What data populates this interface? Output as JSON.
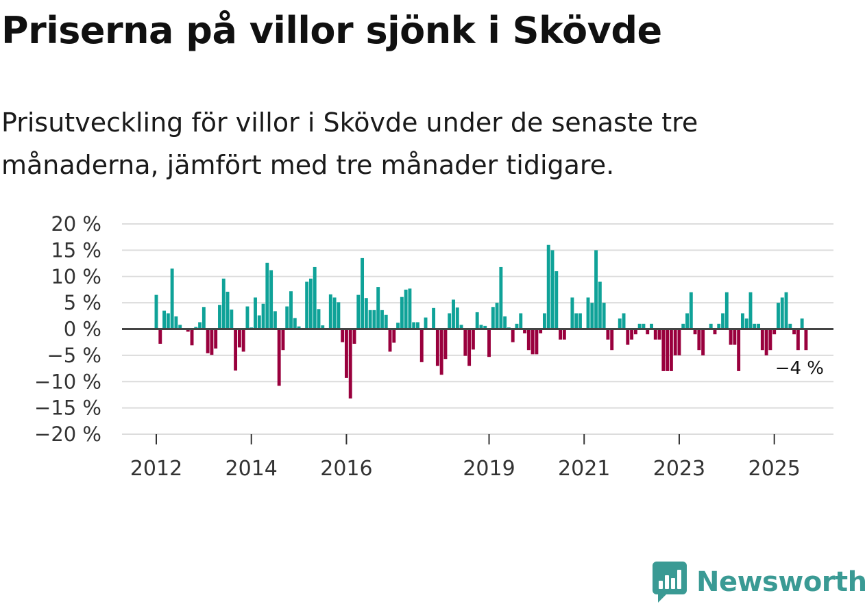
{
  "header": {
    "title": "Priserna på villor sjönk i Skövde",
    "subtitle": "Prisutveckling för villor i Skövde under de senaste tre månaderna, jämfört med tre månader tidigare."
  },
  "branding": {
    "logo_text": "Newsworthy",
    "logo_icon": "bar-chart-speech-icon"
  },
  "colors": {
    "positive": "#0fa298",
    "negative": "#99003d",
    "grid": "#dcdcdc",
    "zero_line": "#444444",
    "logo": "#3a9a94"
  },
  "chart_data": {
    "type": "bar",
    "title": "Priserna på villor sjönk i Skövde",
    "xlabel": "",
    "ylabel": "",
    "ylim": [
      -20,
      20
    ],
    "y_ticks": [
      20,
      15,
      10,
      5,
      0,
      -5,
      -10,
      -15,
      -20
    ],
    "y_tick_labels": [
      "20 %",
      "15 %",
      "10 %",
      "5 %",
      "0 %",
      "−5 %",
      "−10 %",
      "−15 %",
      "−20 %"
    ],
    "x_tick_labels": [
      {
        "label": "2012",
        "index": 0
      },
      {
        "label": "2014",
        "index": 24
      },
      {
        "label": "2016",
        "index": 48
      },
      {
        "label": "2019",
        "index": 84
      },
      {
        "label": "2021",
        "index": 108
      },
      {
        "label": "2023",
        "index": 132
      },
      {
        "label": "2025",
        "index": 156
      }
    ],
    "start": "2012-01",
    "grid": true,
    "annotation": {
      "label": "−4 %",
      "index": 164
    },
    "values": [
      6.5,
      -2.8,
      3.5,
      3,
      11.5,
      2.4,
      0.8,
      0,
      -0.5,
      -3.1,
      0.4,
      1.3,
      4.2,
      -4.6,
      -4.9,
      -3.7,
      4.6,
      9.6,
      7.1,
      3.7,
      -7.9,
      -3.5,
      -4.3,
      4.3,
      0.3,
      6,
      2.6,
      4.8,
      12.6,
      11.2,
      3.4,
      -10.8,
      -4,
      4.3,
      7.2,
      2.1,
      0.5,
      0.2,
      9,
      9.6,
      11.8,
      3.8,
      0.7,
      0,
      6.6,
      6,
      5.1,
      -2.5,
      -9.3,
      -13.2,
      -2.8,
      6.5,
      13.5,
      5.9,
      3.6,
      3.6,
      8,
      3.6,
      2.7,
      -4.3,
      -2.6,
      1.2,
      6.1,
      7.5,
      7.7,
      1.3,
      1.3,
      -6.3,
      2.2,
      0,
      4,
      -7,
      -8.7,
      -5.7,
      3,
      5.6,
      4.1,
      0.8,
      -5.1,
      -7,
      -3.9,
      3.2,
      0.8,
      0.6,
      -5.3,
      4.2,
      5,
      11.8,
      2.4,
      0.3,
      -2.5,
      1,
      3,
      -0.8,
      -4,
      -4.8,
      -4.8,
      -0.8,
      3,
      16,
      15,
      11,
      -2,
      -2,
      0,
      6,
      3,
      3,
      0,
      6,
      5,
      15,
      9,
      5,
      -2,
      -4,
      0,
      2,
      3,
      -3,
      -2,
      -1,
      1,
      1,
      -1,
      1,
      -2,
      -2,
      -8,
      -8,
      -8,
      -5,
      -5,
      1,
      3,
      7,
      -1,
      -4,
      -5,
      0,
      1,
      -1,
      1,
      3,
      7,
      -3,
      -3,
      -8,
      3,
      2,
      7,
      1,
      1,
      -4,
      -5,
      -4,
      -1,
      5,
      6,
      7,
      1,
      -1,
      -4,
      2,
      -4
    ]
  }
}
